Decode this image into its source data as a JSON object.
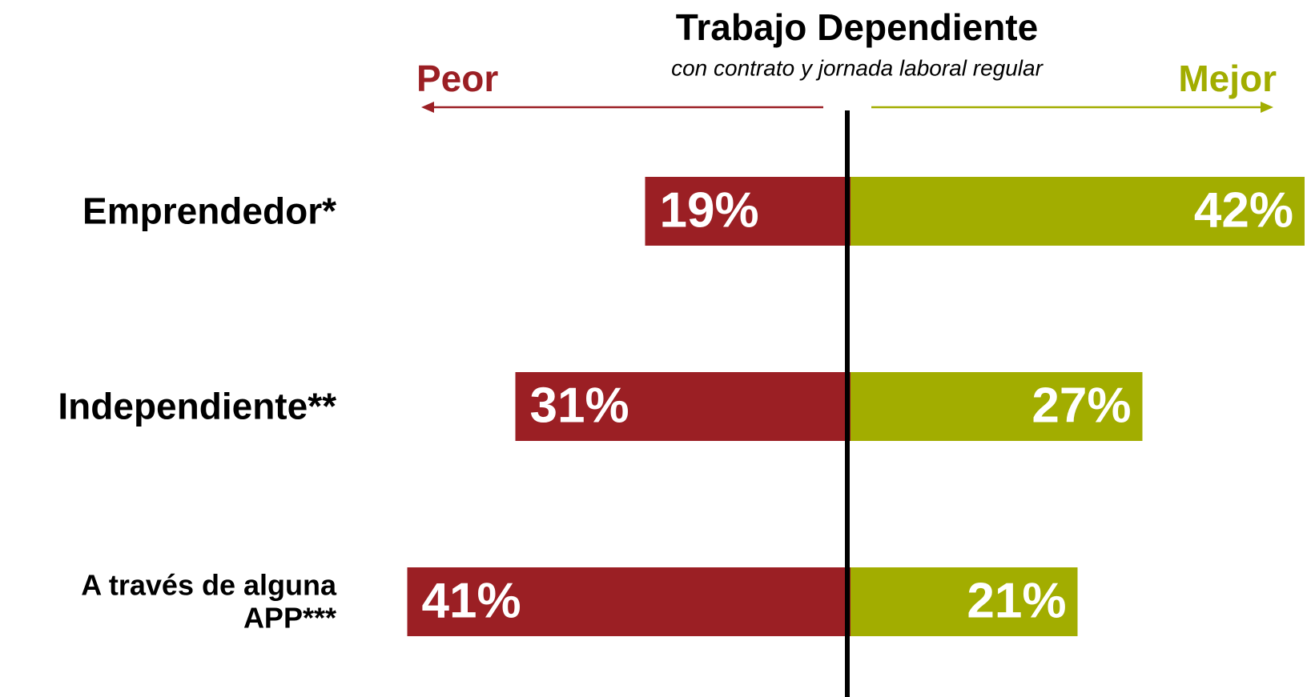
{
  "chart_data": {
    "type": "diverging-bar",
    "title": "Trabajo Dependiente",
    "subtitle": "con contrato y jornada laboral regular",
    "categories": [
      "Emprendedor*",
      "Independiente**",
      "A través de alguna APP***"
    ],
    "series": [
      {
        "name": "Peor",
        "color": "#9b1f24",
        "values": [
          19,
          31,
          41
        ],
        "value_labels": [
          "19%",
          "31%",
          "41%"
        ]
      },
      {
        "name": "Mejor",
        "color": "#a2ad00",
        "values": [
          42,
          27,
          21
        ],
        "value_labels": [
          "42%",
          "27%",
          "21%"
        ]
      }
    ]
  }
}
